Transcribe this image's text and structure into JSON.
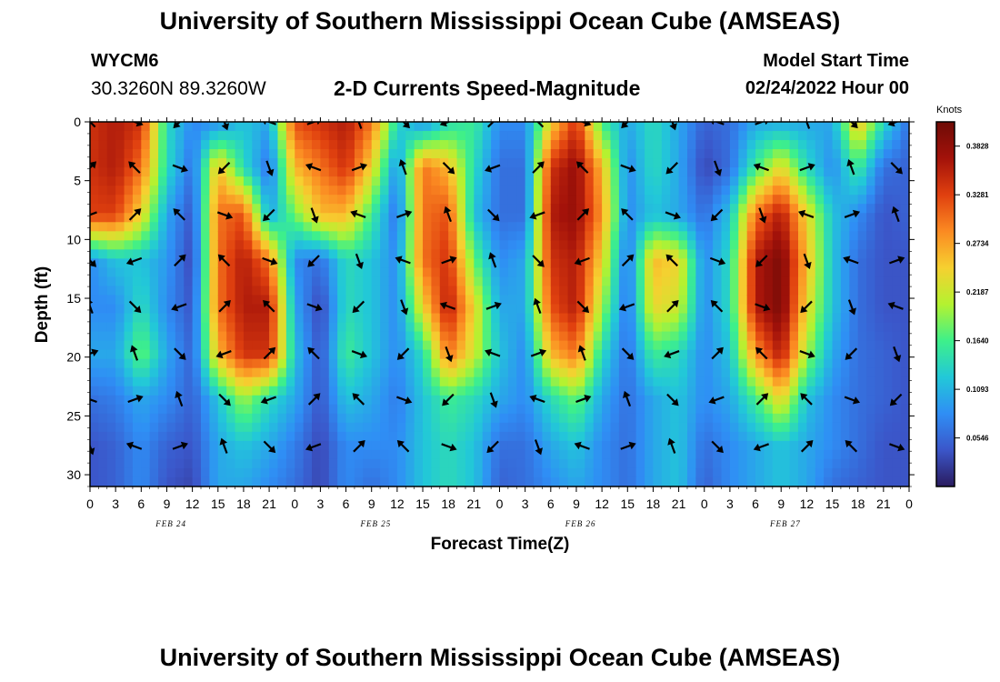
{
  "header": {
    "title": "University of Southern Mississippi Ocean Cube (AMSEAS)",
    "station_id": "WYCM6",
    "coordinates": "30.3260N  89.3260W",
    "subtitle": "2-D Currents Speed-Magnitude",
    "model_start_label": "Model Start Time",
    "model_start_value": "02/24/2022 Hour 00"
  },
  "footer": {
    "title": "University of Southern Mississippi Ocean Cube (AMSEAS)"
  },
  "chart_data": {
    "type": "heatmap",
    "title": "2-D Currents Speed-Magnitude",
    "xlabel": "Forecast Time(Z)",
    "ylabel": "Depth (ft)",
    "x_hours": [
      0,
      3,
      6,
      9,
      12,
      15,
      18,
      21,
      24,
      27,
      30,
      33,
      36,
      39,
      42,
      45,
      48,
      51,
      54,
      57,
      60,
      63,
      66,
      69,
      72,
      75,
      78,
      81,
      84,
      87,
      90,
      93,
      96
    ],
    "x_tick_labels": [
      "0",
      "3",
      "6",
      "9",
      "12",
      "15",
      "18",
      "21",
      "0",
      "3",
      "6",
      "9",
      "12",
      "15",
      "18",
      "21",
      "0",
      "3",
      "6",
      "9",
      "12",
      "15",
      "18",
      "21",
      "0",
      "3",
      "6",
      "9",
      "12",
      "15",
      "18",
      "21",
      "0"
    ],
    "date_labels": [
      {
        "label": "FEB 24",
        "hour": 9.5
      },
      {
        "label": "FEB 25",
        "hour": 33.5
      },
      {
        "label": "FEB 26",
        "hour": 57.5
      },
      {
        "label": "FEB 27",
        "hour": 81.5
      }
    ],
    "y_ticks": [
      0,
      5,
      10,
      15,
      20,
      25,
      30
    ],
    "ylim": [
      31,
      0
    ],
    "xlim": [
      0,
      96
    ],
    "colorbar": {
      "unit": "Knots",
      "min": 0,
      "max": 0.4101,
      "tick_labels": [
        "0.3828",
        "0.3281",
        "0.2734",
        "0.2187",
        "0.1640",
        "0.1093",
        "0.0546"
      ],
      "tick_values": [
        0.3828,
        0.3281,
        0.2734,
        0.2187,
        0.164,
        0.1093,
        0.0546
      ],
      "stops": [
        "#2a1b5e",
        "#3b56c9",
        "#2f8ef5",
        "#22c8d8",
        "#3ef08a",
        "#b4f230",
        "#f6d030",
        "#fb8a22",
        "#e0400f",
        "#a3120a",
        "#6e0b06"
      ]
    },
    "speed_grid": {
      "depths": [
        0,
        3.9,
        7.9,
        11.8,
        15.7,
        19.7,
        23.6,
        27.6,
        31
      ],
      "cols": [
        {
          "hour": 0,
          "values": [
            0.34,
            0.34,
            0.33,
            0.08,
            0.08,
            0.1,
            0.06,
            0.04,
            0.04
          ]
        },
        {
          "hour": 3,
          "values": [
            0.36,
            0.36,
            0.33,
            0.12,
            0.08,
            0.1,
            0.07,
            0.05,
            0.05
          ]
        },
        {
          "hour": 6,
          "values": [
            0.34,
            0.3,
            0.24,
            0.12,
            0.14,
            0.18,
            0.1,
            0.08,
            0.08
          ]
        },
        {
          "hour": 9,
          "values": [
            0.14,
            0.14,
            0.1,
            0.09,
            0.08,
            0.1,
            0.08,
            0.05,
            0.04
          ]
        },
        {
          "hour": 12,
          "values": [
            0.08,
            0.06,
            0.04,
            0.03,
            0.04,
            0.05,
            0.05,
            0.04,
            0.03
          ]
        },
        {
          "hour": 15,
          "values": [
            0.08,
            0.26,
            0.3,
            0.3,
            0.3,
            0.26,
            0.12,
            0.1,
            0.1
          ]
        },
        {
          "hour": 18,
          "values": [
            0.12,
            0.14,
            0.32,
            0.36,
            0.36,
            0.34,
            0.2,
            0.12,
            0.1
          ]
        },
        {
          "hour": 21,
          "values": [
            0.1,
            0.06,
            0.1,
            0.3,
            0.36,
            0.34,
            0.14,
            0.1,
            0.08
          ]
        },
        {
          "hour": 24,
          "values": [
            0.32,
            0.26,
            0.18,
            0.08,
            0.1,
            0.12,
            0.1,
            0.07,
            0.06
          ]
        },
        {
          "hour": 27,
          "values": [
            0.34,
            0.3,
            0.26,
            0.06,
            0.03,
            0.04,
            0.04,
            0.03,
            0.03
          ]
        },
        {
          "hour": 30,
          "values": [
            0.36,
            0.34,
            0.26,
            0.14,
            0.14,
            0.16,
            0.12,
            0.08,
            0.08
          ]
        },
        {
          "hour": 33,
          "values": [
            0.3,
            0.24,
            0.16,
            0.12,
            0.12,
            0.12,
            0.1,
            0.08,
            0.06
          ]
        },
        {
          "hour": 36,
          "values": [
            0.14,
            0.08,
            0.06,
            0.08,
            0.08,
            0.08,
            0.07,
            0.08,
            0.08
          ]
        },
        {
          "hour": 39,
          "values": [
            0.08,
            0.3,
            0.3,
            0.3,
            0.24,
            0.14,
            0.12,
            0.12,
            0.12
          ]
        },
        {
          "hour": 42,
          "values": [
            0.14,
            0.26,
            0.32,
            0.34,
            0.36,
            0.3,
            0.16,
            0.14,
            0.14
          ]
        },
        {
          "hour": 45,
          "values": [
            0.16,
            0.14,
            0.12,
            0.18,
            0.24,
            0.22,
            0.14,
            0.12,
            0.12
          ]
        },
        {
          "hour": 48,
          "values": [
            0.08,
            0.06,
            0.06,
            0.08,
            0.1,
            0.12,
            0.1,
            0.06,
            0.05
          ]
        },
        {
          "hour": 51,
          "values": [
            0.08,
            0.06,
            0.06,
            0.1,
            0.1,
            0.08,
            0.08,
            0.06,
            0.06
          ]
        },
        {
          "hour": 54,
          "values": [
            0.24,
            0.34,
            0.36,
            0.34,
            0.32,
            0.26,
            0.14,
            0.1,
            0.08
          ]
        },
        {
          "hour": 57,
          "values": [
            0.34,
            0.38,
            0.38,
            0.36,
            0.36,
            0.3,
            0.18,
            0.12,
            0.1
          ]
        },
        {
          "hour": 60,
          "values": [
            0.16,
            0.26,
            0.28,
            0.24,
            0.2,
            0.14,
            0.1,
            0.08,
            0.08
          ]
        },
        {
          "hour": 63,
          "values": [
            0.1,
            0.08,
            0.08,
            0.06,
            0.06,
            0.06,
            0.06,
            0.06,
            0.06
          ]
        },
        {
          "hour": 66,
          "values": [
            0.14,
            0.14,
            0.12,
            0.26,
            0.24,
            0.16,
            0.1,
            0.1,
            0.1
          ]
        },
        {
          "hour": 69,
          "values": [
            0.1,
            0.1,
            0.1,
            0.24,
            0.22,
            0.14,
            0.12,
            0.12,
            0.12
          ]
        },
        {
          "hour": 72,
          "values": [
            0.05,
            0.03,
            0.06,
            0.08,
            0.08,
            0.08,
            0.08,
            0.06,
            0.05
          ]
        },
        {
          "hour": 75,
          "values": [
            0.06,
            0.06,
            0.12,
            0.14,
            0.14,
            0.12,
            0.1,
            0.08,
            0.08
          ]
        },
        {
          "hour": 78,
          "values": [
            0.1,
            0.16,
            0.3,
            0.36,
            0.36,
            0.28,
            0.16,
            0.1,
            0.1
          ]
        },
        {
          "hour": 81,
          "values": [
            0.1,
            0.24,
            0.36,
            0.4,
            0.4,
            0.36,
            0.24,
            0.12,
            0.12
          ]
        },
        {
          "hour": 84,
          "values": [
            0.1,
            0.14,
            0.24,
            0.26,
            0.24,
            0.2,
            0.12,
            0.1,
            0.1
          ]
        },
        {
          "hour": 87,
          "values": [
            0.1,
            0.08,
            0.12,
            0.12,
            0.12,
            0.1,
            0.08,
            0.08,
            0.06
          ]
        },
        {
          "hour": 90,
          "values": [
            0.26,
            0.16,
            0.08,
            0.06,
            0.06,
            0.06,
            0.06,
            0.06,
            0.05
          ]
        },
        {
          "hour": 93,
          "values": [
            0.14,
            0.06,
            0.04,
            0.04,
            0.04,
            0.05,
            0.05,
            0.04,
            0.04
          ]
        },
        {
          "hour": 96,
          "values": [
            0.06,
            0.05,
            0.05,
            0.04,
            0.04,
            0.04,
            0.04,
            0.04,
            0.04
          ]
        }
      ]
    },
    "vector_depths": [
      0,
      3.9,
      7.9,
      11.8,
      15.7,
      19.7,
      23.6,
      27.6
    ],
    "vector_hours": [
      0,
      5.25,
      10.5,
      15.75,
      21,
      26.25,
      31.5,
      36.75,
      42,
      47.25,
      52.5,
      57.75,
      63,
      68.25,
      73.5,
      78.75,
      84,
      89.25,
      94.5
    ],
    "vector_direction_pattern_deg": [
      225,
      45,
      200,
      20,
      160,
      340,
      135,
      315,
      250,
      70
    ]
  }
}
